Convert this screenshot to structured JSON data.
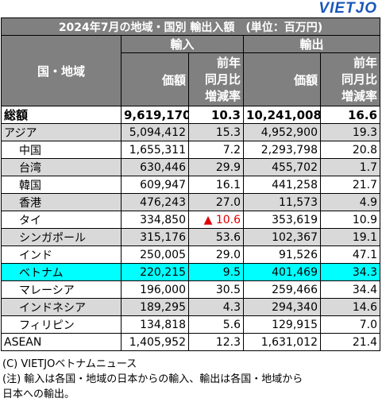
{
  "logo": "VIETJO",
  "title": "2024年7月の地域・国別 輸出入額　(単位：百万円)",
  "header": {
    "region": "国・地域",
    "import": "輸入",
    "export": "輸出",
    "value": "価額",
    "change": "前年\n同月比\n増減率"
  },
  "table": {
    "rows": [
      [
        "総額",
        "9,619,170",
        "10.3",
        "10,241,008",
        "16.6"
      ],
      [
        "アジア",
        "5,094,412",
        "15.3",
        "4,952,900",
        "19.3"
      ],
      [
        "中国",
        "1,655,311",
        "7.2",
        "2,293,798",
        "20.8"
      ],
      [
        "台湾",
        "630,446",
        "29.9",
        "455,702",
        "1.7"
      ],
      [
        "韓国",
        "609,947",
        "16.1",
        "441,258",
        "21.7"
      ],
      [
        "香港",
        "476,243",
        "27.0",
        "11,573",
        "4.9"
      ],
      [
        "タイ",
        "334,850",
        "▲ 10.6",
        "353,619",
        "10.9"
      ],
      [
        "シンガポール",
        "315,176",
        "53.6",
        "102,367",
        "19.1"
      ],
      [
        "インド",
        "250,005",
        "29.0",
        "91,526",
        "47.1"
      ],
      [
        "ベトナム",
        "220,215",
        "9.5",
        "401,469",
        "34.3"
      ],
      [
        "マレーシア",
        "196,000",
        "30.5",
        "259,466",
        "34.4"
      ],
      [
        "インドネシア",
        "189,295",
        "4.3",
        "294,340",
        "14.6"
      ],
      [
        "フィリピン",
        "134,818",
        "5.6",
        "129,915",
        "7.0"
      ],
      [
        "ASEAN",
        "1,405,952",
        "12.3",
        "1,631,012",
        "21.4"
      ]
    ]
  },
  "footer": [
    "(C) VIETJOベトナムニュース",
    "(注) 輸入は各国・地域の日本からの輸入、輸出は各国・地域から",
    "日本への輸出。"
  ]
}
